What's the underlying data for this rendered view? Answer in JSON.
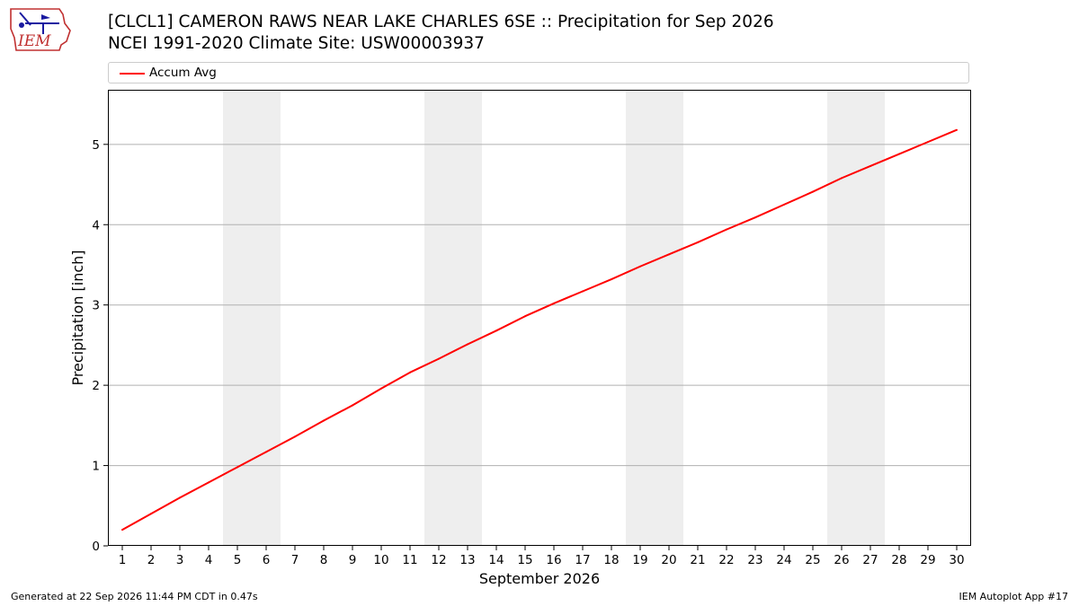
{
  "header": {
    "logo_text": "IEM",
    "title_line1": "[CLCL1] CAMERON RAWS NEAR LAKE CHARLES 6SE :: Precipitation for Sep 2026",
    "title_line2": "NCEI 1991-2020 Climate Site: USW00003937"
  },
  "footer": {
    "generated": "Generated at 22 Sep 2026 11:44 PM CDT in 0.47s",
    "app": "IEM Autoplot App #17"
  },
  "colors": {
    "series": "#ff0000",
    "weekend_band": "#eeeeee",
    "grid": "#b0b0b0"
  },
  "chart_data": {
    "type": "line",
    "title": "[CLCL1] CAMERON RAWS NEAR LAKE CHARLES 6SE :: Precipitation for Sep 2026",
    "subtitle": "NCEI 1991-2020 Climate Site: USW00003937",
    "xlabel": "September 2026",
    "ylabel": "Precipitation [inch]",
    "ylim": [
      0,
      5.68
    ],
    "yticks": [
      0,
      1,
      2,
      3,
      4,
      5
    ],
    "grid": "horizontal",
    "legend_position": "top",
    "x": [
      1,
      2,
      3,
      4,
      5,
      6,
      7,
      8,
      9,
      10,
      11,
      12,
      13,
      14,
      15,
      16,
      17,
      18,
      19,
      20,
      21,
      22,
      23,
      24,
      25,
      26,
      27,
      28,
      29,
      30
    ],
    "shaded_days": [
      [
        5,
        6
      ],
      [
        12,
        13
      ],
      [
        19,
        20
      ],
      [
        26,
        27
      ]
    ],
    "series": [
      {
        "name": "Accum Avg",
        "values": [
          0.2,
          0.4,
          0.6,
          0.79,
          0.98,
          1.17,
          1.36,
          1.56,
          1.75,
          1.96,
          2.16,
          2.33,
          2.51,
          2.68,
          2.86,
          3.02,
          3.17,
          3.32,
          3.48,
          3.63,
          3.78,
          3.94,
          4.09,
          4.25,
          4.41,
          4.58,
          4.73,
          4.88,
          5.03,
          5.18
        ]
      }
    ]
  }
}
